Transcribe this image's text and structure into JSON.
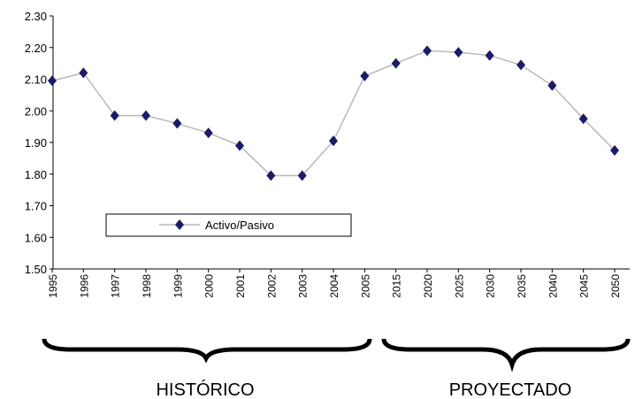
{
  "chart_data": {
    "type": "line",
    "categories": [
      "1995",
      "1996",
      "1997",
      "1998",
      "1999",
      "2000",
      "2001",
      "2002",
      "2003",
      "2004",
      "2005",
      "2015",
      "2020",
      "2025",
      "2030",
      "2035",
      "2040",
      "2045",
      "2050"
    ],
    "series": [
      {
        "name": "Activo/Pasivo",
        "color": "#1a1a6e",
        "line_color": "#b8b8b8",
        "values": [
          2.095,
          2.12,
          1.985,
          1.985,
          1.96,
          1.93,
          1.89,
          1.795,
          1.795,
          1.905,
          2.11,
          2.15,
          2.19,
          2.185,
          2.175,
          2.145,
          2.08,
          1.975,
          1.875
        ]
      }
    ],
    "ylim": [
      1.5,
      2.3
    ],
    "yticks": [
      {
        "value": 1.5,
        "label": "1.50"
      },
      {
        "value": 1.6,
        "label": "1.60"
      },
      {
        "value": 1.7,
        "label": "1.70"
      },
      {
        "value": 1.8,
        "label": "1.80"
      },
      {
        "value": 1.9,
        "label": "1.90"
      },
      {
        "value": 2.0,
        "label": "2.00"
      },
      {
        "value": 2.1,
        "label": "2.10"
      },
      {
        "value": 2.2,
        "label": "2.20"
      },
      {
        "value": 2.3,
        "label": "2.30"
      }
    ],
    "grid": false,
    "annotations": [
      "HISTÓRICO",
      "PROYECTADO"
    ]
  }
}
